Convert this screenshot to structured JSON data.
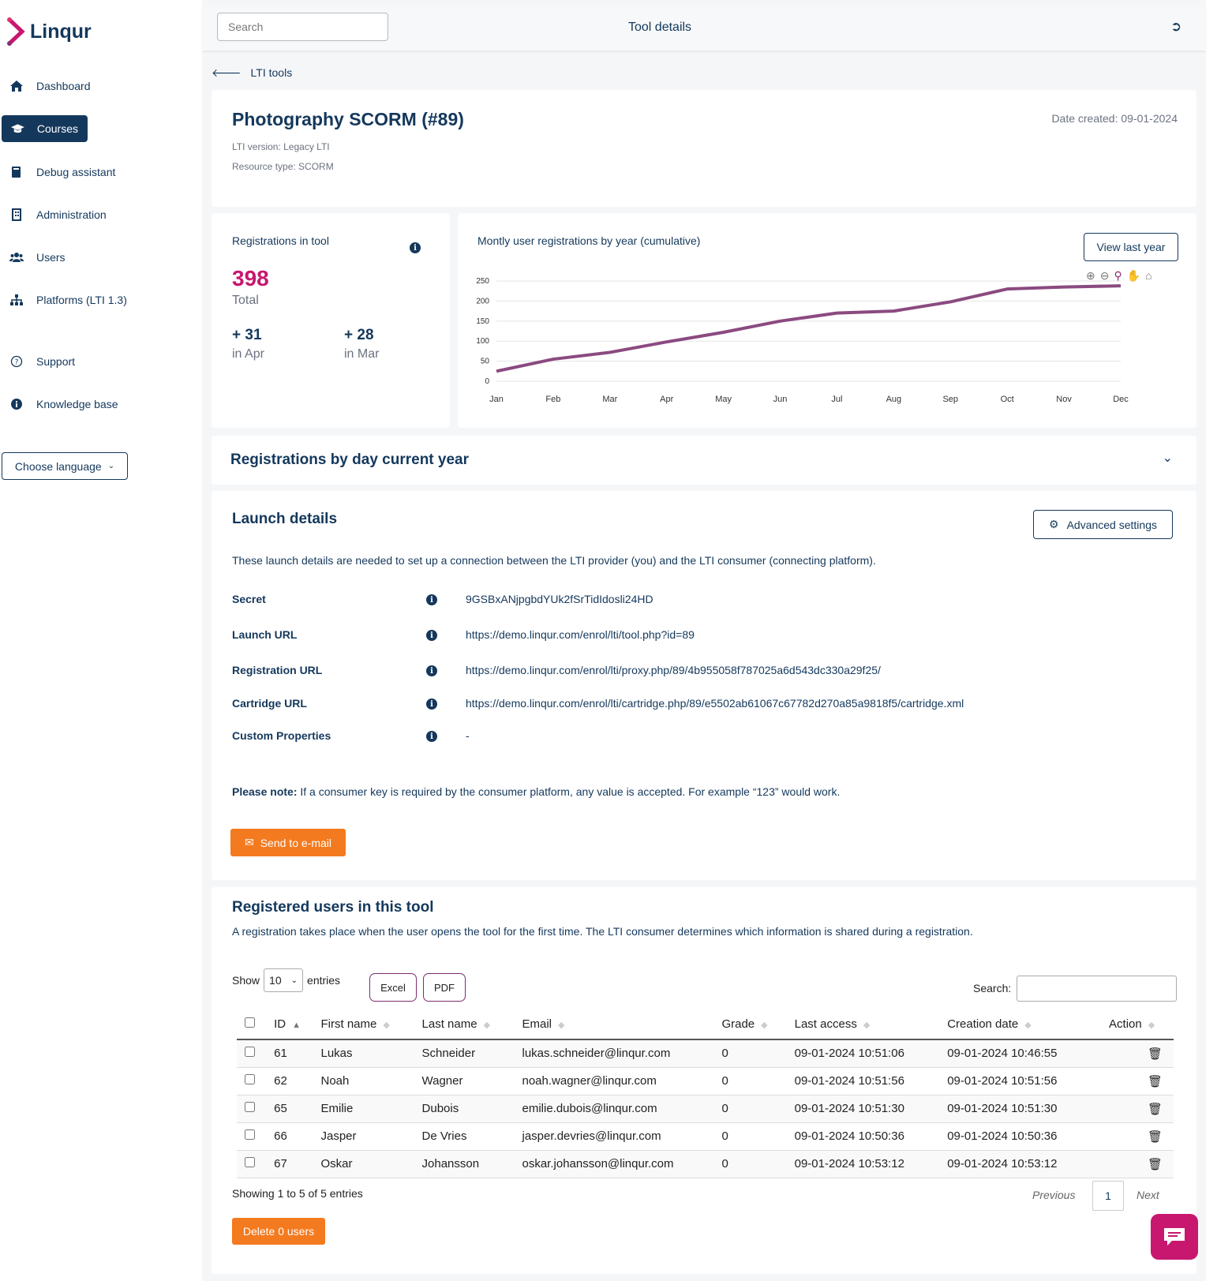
{
  "brand": {
    "name": "Linqur"
  },
  "sidebar": {
    "items": [
      {
        "label": "Dashboard",
        "icon": "home-icon"
      },
      {
        "label": "Courses",
        "icon": "graduation-cap-icon",
        "active": true
      },
      {
        "label": "Debug assistant",
        "icon": "book-icon"
      },
      {
        "label": "Administration",
        "icon": "building-icon"
      },
      {
        "label": "Users",
        "icon": "users-icon"
      },
      {
        "label": "Platforms (LTI 1.3)",
        "icon": "sitemap-icon"
      },
      {
        "label": "Support",
        "icon": "question-circle-icon"
      },
      {
        "label": "Knowledge base",
        "icon": "info-circle-icon"
      }
    ],
    "language": "Choose language"
  },
  "topbar": {
    "search_placeholder": "Search",
    "title": "Tool details"
  },
  "breadcrumb": {
    "back": "LTI tools"
  },
  "tool": {
    "title": "Photography SCORM (#89)",
    "lti_version": "LTI version: Legacy LTI",
    "resource_type": "Resource type: SCORM",
    "date_created": "Date created: 09-01-2024"
  },
  "registrations": {
    "title": "Registrations in tool",
    "total": "398",
    "total_label": "Total",
    "stats": [
      {
        "value": "+ 31",
        "label": "in Apr"
      },
      {
        "value": "+ 28",
        "label": "in Mar"
      }
    ]
  },
  "chart_data": {
    "type": "line",
    "title": "Montly user registrations by year (cumulative)",
    "categories": [
      "Jan",
      "Feb",
      "Mar",
      "Apr",
      "May",
      "Jun",
      "Jul",
      "Aug",
      "Sep",
      "Oct",
      "Nov",
      "Dec"
    ],
    "values": [
      25,
      55,
      72,
      98,
      122,
      150,
      170,
      175,
      198,
      230,
      235,
      238
    ],
    "ylim": [
      0,
      250
    ],
    "yticks": [
      0,
      50,
      100,
      150,
      200,
      250
    ],
    "grid": true,
    "color": "#8b4a80"
  },
  "chart_controls": {
    "view_last_year": "View last year"
  },
  "by_day": {
    "title": "Registrations by day current year"
  },
  "launch": {
    "title": "Launch details",
    "advanced": "Advanced settings",
    "description": "These launch details are needed to set up a connection between the LTI provider (you) and the LTI consumer (connecting platform).",
    "rows": [
      {
        "label": "Secret",
        "value": "9GSBxANjpgbdYUk2fSrTidIdosli24HD"
      },
      {
        "label": "Launch URL",
        "value": "https://demo.linqur.com/enrol/lti/tool.php?id=89"
      },
      {
        "label": "Registration URL",
        "value": "https://demo.linqur.com/enrol/lti/proxy.php/89/4b955058f787025a6d543dc330a29f25/"
      },
      {
        "label": "Cartridge URL",
        "value": "https://demo.linqur.com/enrol/lti/cartridge.php/89/e5502ab61067c67782d270a85a9818f5/cartridge.xml"
      },
      {
        "label": "Custom Properties",
        "value": "-"
      }
    ],
    "note_label": "Please note:",
    "note": " If a consumer key is required by the consumer platform, any value is accepted. For example “123” would work.",
    "send": "Send to e-mail"
  },
  "users": {
    "title": "Registered users in this tool",
    "description": "A registration takes place when the user opens the tool for the first time. The LTI consumer determines which information is shared during a registration.",
    "show": "Show",
    "page_size": "10",
    "entries": "entries",
    "excel": "Excel",
    "pdf": "PDF",
    "search_label": "Search:",
    "columns": [
      "ID",
      "First name",
      "Last name",
      "Email",
      "Grade",
      "Last access",
      "Creation date",
      "Action"
    ],
    "rows": [
      [
        "61",
        "Lukas",
        "Schneider",
        "lukas.schneider@linqur.com",
        "0",
        "09-01-2024 10:51:06",
        "09-01-2024 10:46:55"
      ],
      [
        "62",
        "Noah",
        "Wagner",
        "noah.wagner@linqur.com",
        "0",
        "09-01-2024 10:51:56",
        "09-01-2024 10:51:56"
      ],
      [
        "65",
        "Emilie",
        "Dubois",
        "emilie.dubois@linqur.com",
        "0",
        "09-01-2024 10:51:30",
        "09-01-2024 10:51:30"
      ],
      [
        "66",
        "Jasper",
        "De Vries",
        "jasper.devries@linqur.com",
        "0",
        "09-01-2024 10:50:36",
        "09-01-2024 10:50:36"
      ],
      [
        "67",
        "Oskar",
        "Johansson",
        "oskar.johansson@linqur.com",
        "0",
        "09-01-2024 10:53:12",
        "09-01-2024 10:53:12"
      ]
    ],
    "info": "Showing 1 to 5 of 5 entries",
    "previous": "Previous",
    "page": "1",
    "next": "Next",
    "delete": "Delete 0 users"
  },
  "colors": {
    "navy": "#14385c",
    "accent": "#c8176e",
    "orange": "#f47a1f",
    "line": "#8b4a80"
  }
}
